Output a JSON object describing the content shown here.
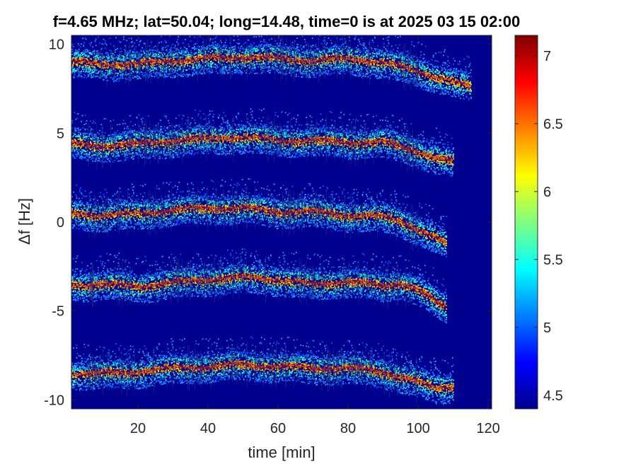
{
  "chart_data": {
    "type": "heatmap",
    "title": "f=4.65 MHz;  lat=50.04; long=14.48, time=0 is at 2025 03 15 02:00",
    "xlabel": "time [min]",
    "ylabel": "Δf [Hz]",
    "xlim": [
      1,
      121
    ],
    "ylim": [
      -10.5,
      10.5
    ],
    "xticks": [
      20,
      40,
      60,
      80,
      100,
      120
    ],
    "yticks": [
      -10,
      -5,
      0,
      5,
      10
    ],
    "clim": [
      4.4,
      7.15
    ],
    "colorbar_ticks": [
      4.5,
      5,
      5.5,
      6,
      6.5,
      7
    ],
    "colormap": "jet",
    "background_color": "#00008f",
    "grid": false,
    "traces": [
      {
        "name": "",
        "points": [
          [
            1,
            9.0
          ],
          [
            10,
            8.9
          ],
          [
            20,
            8.9
          ],
          [
            30,
            9.1
          ],
          [
            40,
            9.2
          ],
          [
            50,
            9.3
          ],
          [
            60,
            9.2
          ],
          [
            70,
            9.1
          ],
          [
            80,
            9.2
          ],
          [
            90,
            9.0
          ],
          [
            100,
            8.5
          ],
          [
            110,
            7.9
          ],
          [
            115,
            7.6
          ]
        ]
      },
      {
        "name": "",
        "points": [
          [
            1,
            4.4
          ],
          [
            10,
            4.3
          ],
          [
            20,
            4.4
          ],
          [
            30,
            4.6
          ],
          [
            40,
            4.7
          ],
          [
            50,
            4.8
          ],
          [
            60,
            4.6
          ],
          [
            70,
            4.6
          ],
          [
            80,
            4.5
          ],
          [
            90,
            4.5
          ],
          [
            100,
            4.0
          ],
          [
            105,
            3.6
          ],
          [
            110,
            3.4
          ]
        ]
      },
      {
        "name": "",
        "points": [
          [
            1,
            0.5
          ],
          [
            10,
            0.4
          ],
          [
            20,
            0.5
          ],
          [
            30,
            0.7
          ],
          [
            40,
            0.8
          ],
          [
            50,
            0.8
          ],
          [
            60,
            0.6
          ],
          [
            70,
            0.6
          ],
          [
            80,
            0.4
          ],
          [
            90,
            0.3
          ],
          [
            95,
            0.1
          ],
          [
            100,
            -0.4
          ],
          [
            105,
            -0.9
          ],
          [
            108,
            -1.2
          ]
        ]
      },
      {
        "name": "",
        "points": [
          [
            1,
            -3.5
          ],
          [
            10,
            -3.5
          ],
          [
            20,
            -3.6
          ],
          [
            30,
            -3.4
          ],
          [
            40,
            -3.2
          ],
          [
            50,
            -3.1
          ],
          [
            60,
            -3.2
          ],
          [
            70,
            -3.5
          ],
          [
            80,
            -3.3
          ],
          [
            90,
            -3.6
          ],
          [
            95,
            -3.4
          ],
          [
            100,
            -3.8
          ],
          [
            105,
            -4.5
          ],
          [
            108,
            -4.8
          ]
        ]
      },
      {
        "name": "",
        "points": [
          [
            1,
            -8.5
          ],
          [
            10,
            -8.5
          ],
          [
            20,
            -8.4
          ],
          [
            30,
            -8.2
          ],
          [
            40,
            -8.1
          ],
          [
            50,
            -8.0
          ],
          [
            60,
            -8.1
          ],
          [
            70,
            -8.2
          ],
          [
            80,
            -8.2
          ],
          [
            90,
            -8.4
          ],
          [
            100,
            -9.0
          ],
          [
            105,
            -9.3
          ],
          [
            110,
            -9.2
          ]
        ]
      }
    ]
  }
}
